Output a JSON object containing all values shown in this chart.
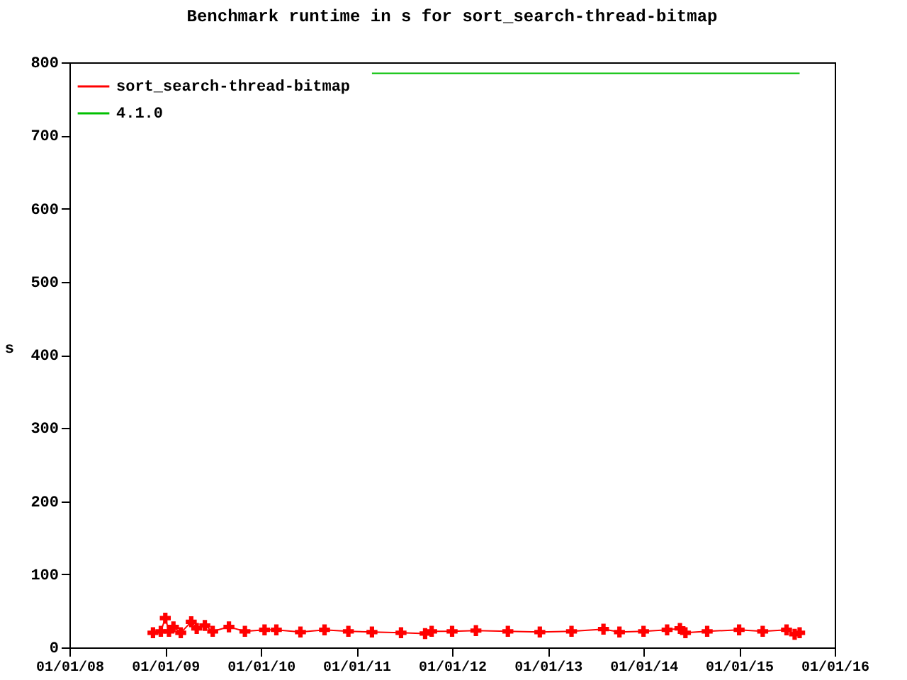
{
  "chart_data": {
    "type": "line",
    "title": "Benchmark runtime in s for sort_search-thread-bitmap",
    "ylabel": "s",
    "xlim": [
      "2008-01-01",
      "2016-01-01"
    ],
    "xticks": [
      {
        "value": "2008-01-01",
        "label": "01/01/08"
      },
      {
        "value": "2009-01-01",
        "label": "01/01/09"
      },
      {
        "value": "2010-01-01",
        "label": "01/01/10"
      },
      {
        "value": "2011-01-01",
        "label": "01/01/11"
      },
      {
        "value": "2012-01-01",
        "label": "01/01/12"
      },
      {
        "value": "2013-01-01",
        "label": "01/01/13"
      },
      {
        "value": "2014-01-01",
        "label": "01/01/14"
      },
      {
        "value": "2015-01-01",
        "label": "01/01/15"
      },
      {
        "value": "2016-01-01",
        "label": "01/01/16"
      }
    ],
    "ylim": [
      0,
      800
    ],
    "yticks": [
      0,
      100,
      200,
      300,
      400,
      500,
      600,
      700,
      800
    ],
    "grid": false,
    "legend": "top left",
    "series": [
      {
        "name": "sort_search-thread-bitmap",
        "color": "#ff0000",
        "marker": "cross",
        "x": [
          "2008-11-15",
          "2008-12-15",
          "2009-01-01",
          "2009-01-15",
          "2009-02-01",
          "2009-03-01",
          "2009-04-10",
          "2009-05-01",
          "2009-06-01",
          "2009-07-01",
          "2009-09-01",
          "2009-11-01",
          "2010-01-15",
          "2010-03-01",
          "2010-06-01",
          "2010-09-01",
          "2010-12-01",
          "2011-03-01",
          "2011-06-20",
          "2011-09-20",
          "2011-10-15",
          "2012-01-01",
          "2012-04-01",
          "2012-08-01",
          "2012-12-01",
          "2013-04-01",
          "2013-08-01",
          "2013-10-01",
          "2014-01-01",
          "2014-04-01",
          "2014-05-20",
          "2014-06-10",
          "2014-09-01",
          "2015-01-01",
          "2015-04-01",
          "2015-07-01",
          "2015-08-01",
          "2015-08-20"
        ],
        "values": [
          20,
          22,
          40,
          22,
          28,
          20,
          35,
          26,
          30,
          22,
          28,
          22,
          24,
          24,
          21,
          24,
          22,
          21,
          20,
          19,
          22,
          22,
          23,
          22,
          21,
          22,
          25,
          21,
          22,
          24,
          26,
          20,
          22,
          24,
          22,
          24,
          18,
          20
        ]
      },
      {
        "name": "4.1.0",
        "color": "#00c000",
        "marker": "none",
        "x": [
          "2011-03-01",
          "2015-08-20"
        ],
        "values": [
          785,
          785
        ]
      }
    ]
  }
}
